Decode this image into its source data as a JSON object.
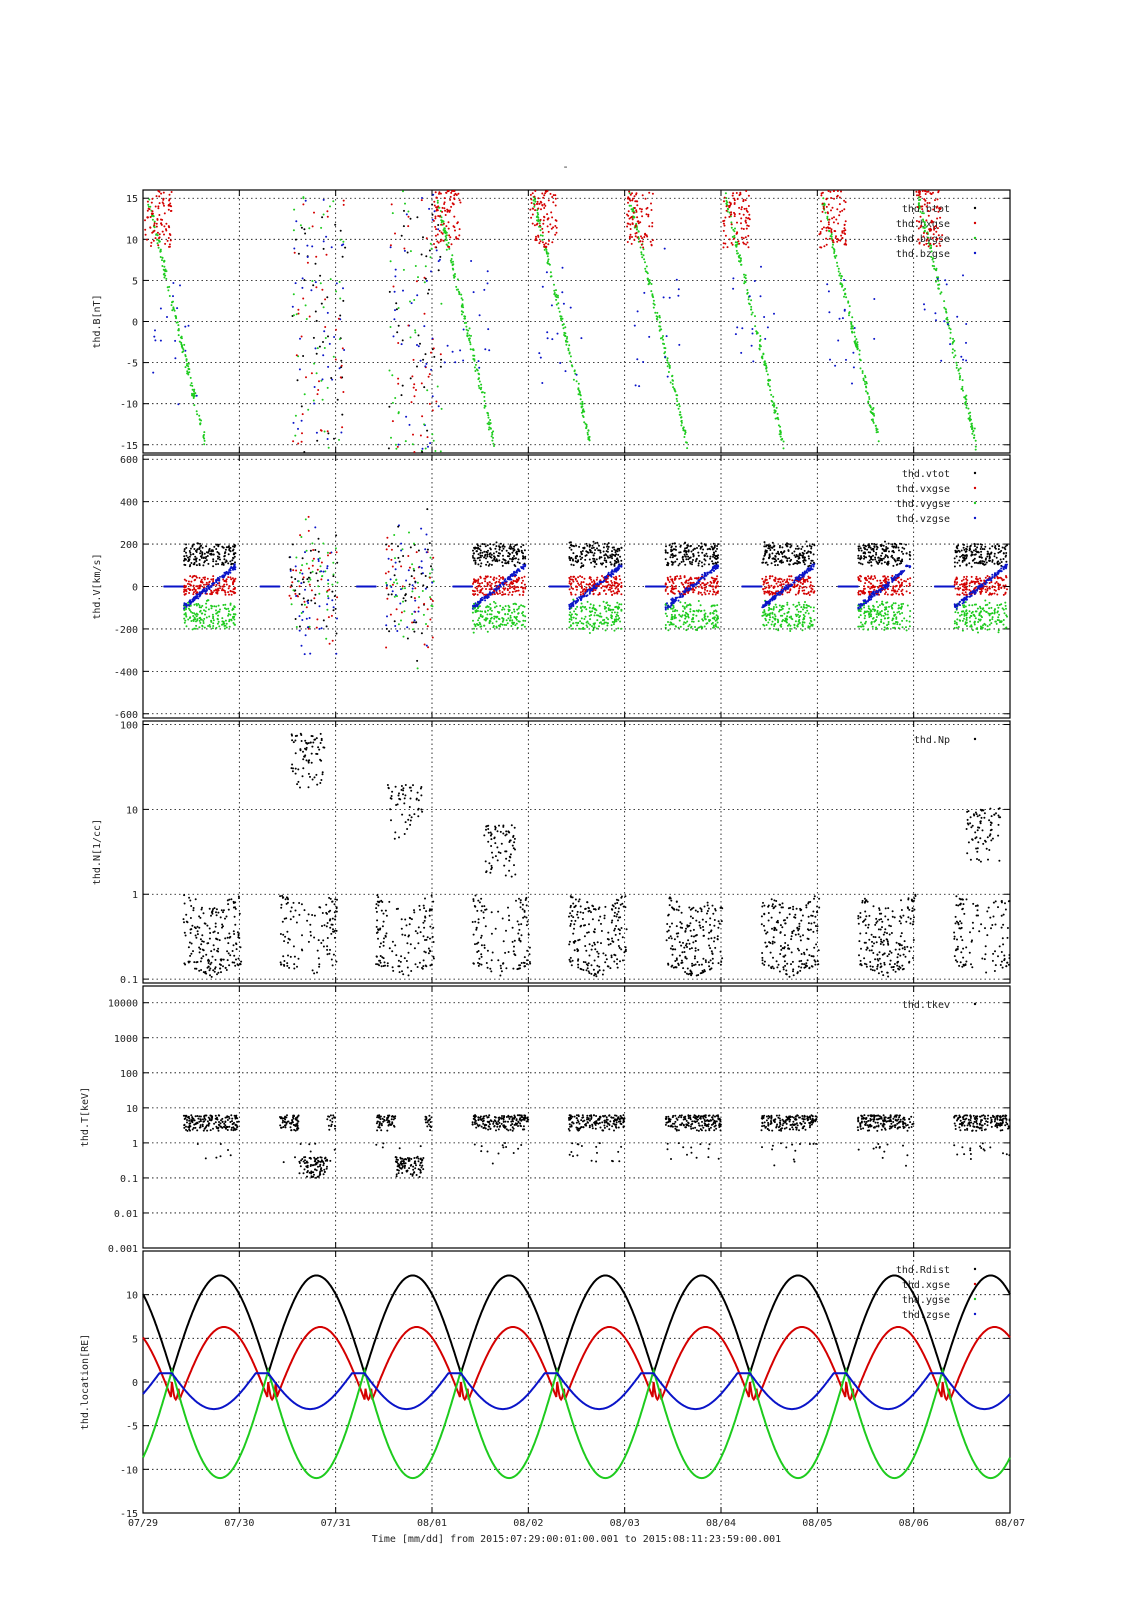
{
  "page": {
    "title": "-"
  },
  "colors": {
    "black": "#000000",
    "red": "#d40000",
    "green": "#1ecb1e",
    "blue": "#0a14c8",
    "grid": "#000000"
  },
  "x_axis": {
    "ticks": [
      "07/29",
      "07/30",
      "07/31",
      "08/01",
      "08/02",
      "08/03",
      "08/04",
      "08/05",
      "08/06",
      "08/07"
    ],
    "label": "Time [mm/dd]  from 2015:07:29:00:01:00.001  to  2015:08:11:23:59:00.001"
  },
  "chart_data": [
    {
      "type": "scatter",
      "ylabel": "thd.B[nT]",
      "yscale": "linear",
      "ylim": [
        -16,
        16
      ],
      "ytick_values": [
        -15,
        -10,
        -5,
        0,
        5,
        10,
        15
      ],
      "ytick_labels": [
        "-15",
        "-10",
        "-5",
        "0",
        "5",
        "10",
        "15"
      ],
      "grid": true,
      "legend_position": "top-right",
      "series": [
        {
          "name": "thd.btot",
          "color": "black",
          "description": "mostly clipped above +16 nT"
        },
        {
          "name": "thd.bxgse",
          "color": "red",
          "description": "5 to 16 nT near apogee; scattered in magnetosheath"
        },
        {
          "name": "thd.bygse",
          "color": "green",
          "description": "descends from ~15 to -15 nT each orbit"
        },
        {
          "name": "thd.bzgse",
          "color": "blue",
          "description": "scattered in magnetosheath intervals"
        }
      ]
    },
    {
      "type": "scatter",
      "ylabel": "thd.V[km/s]",
      "yscale": "linear",
      "ylim": [
        -620,
        620
      ],
      "ytick_values": [
        -600,
        -400,
        -200,
        0,
        200,
        400,
        600
      ],
      "ytick_labels": [
        "-600",
        "-400",
        "-200",
        "0",
        "200",
        "400",
        "600"
      ],
      "grid": true,
      "legend_position": "top-right",
      "series": [
        {
          "name": "thd.vtot",
          "color": "black",
          "typical_range": [
            100,
            200
          ]
        },
        {
          "name": "thd.vxgse",
          "color": "red",
          "typical_range": [
            -40,
            50
          ]
        },
        {
          "name": "thd.vygse",
          "color": "green",
          "typical_range": [
            -200,
            -80
          ]
        },
        {
          "name": "thd.vzgse",
          "color": "blue",
          "typical_range": [
            -100,
            100
          ]
        }
      ]
    },
    {
      "type": "scatter",
      "ylabel": "thd.N[1/cc]",
      "yscale": "log",
      "ylim": [
        0.09,
        110
      ],
      "ytick_values": [
        0.1,
        1,
        10,
        100
      ],
      "ytick_labels": [
        "0.1",
        "1",
        "10",
        "100"
      ],
      "grid": true,
      "legend_position": "top-right",
      "series": [
        {
          "name": "thd.Np",
          "color": "black",
          "typical_range": [
            0.15,
            1
          ],
          "peak_values": [
            100,
            30,
            10
          ]
        }
      ]
    },
    {
      "type": "scatter",
      "ylabel": "thd.T[keV]",
      "yscale": "log",
      "ylim": [
        0.001,
        30000
      ],
      "ytick_values": [
        0.001,
        0.01,
        0.1,
        1,
        10,
        100,
        1000,
        10000
      ],
      "ytick_labels": [
        "0.001",
        "0.01",
        "0.1",
        "1",
        "10",
        "100",
        "1000",
        "10000"
      ],
      "grid": true,
      "legend_position": "top-right",
      "series": [
        {
          "name": "thd.tkev",
          "color": "black",
          "typical_range": [
            1,
            6
          ],
          "sheath_range": [
            0.1,
            0.4
          ]
        }
      ]
    },
    {
      "type": "line",
      "ylabel": "thd.location[RE]",
      "yscale": "linear",
      "ylim": [
        -15,
        15
      ],
      "ytick_values": [
        -15,
        -10,
        -5,
        0,
        5,
        10
      ],
      "ytick_labels": [
        "-15",
        "-10",
        "-5",
        "0",
        "5",
        "10"
      ],
      "grid": true,
      "legend_position": "top-right",
      "orbit_period_days": 1.0,
      "series": [
        {
          "name": "thd.Rdist",
          "color": "black",
          "max": 12.2,
          "min": 1.0
        },
        {
          "name": "thd.xgse",
          "color": "red",
          "max": 6.3,
          "min": -2
        },
        {
          "name": "thd.ygse",
          "color": "green",
          "max": 1.3,
          "min": -11
        },
        {
          "name": "thd.zgse",
          "color": "blue",
          "max": 1.0,
          "min": -3.1
        }
      ]
    }
  ]
}
